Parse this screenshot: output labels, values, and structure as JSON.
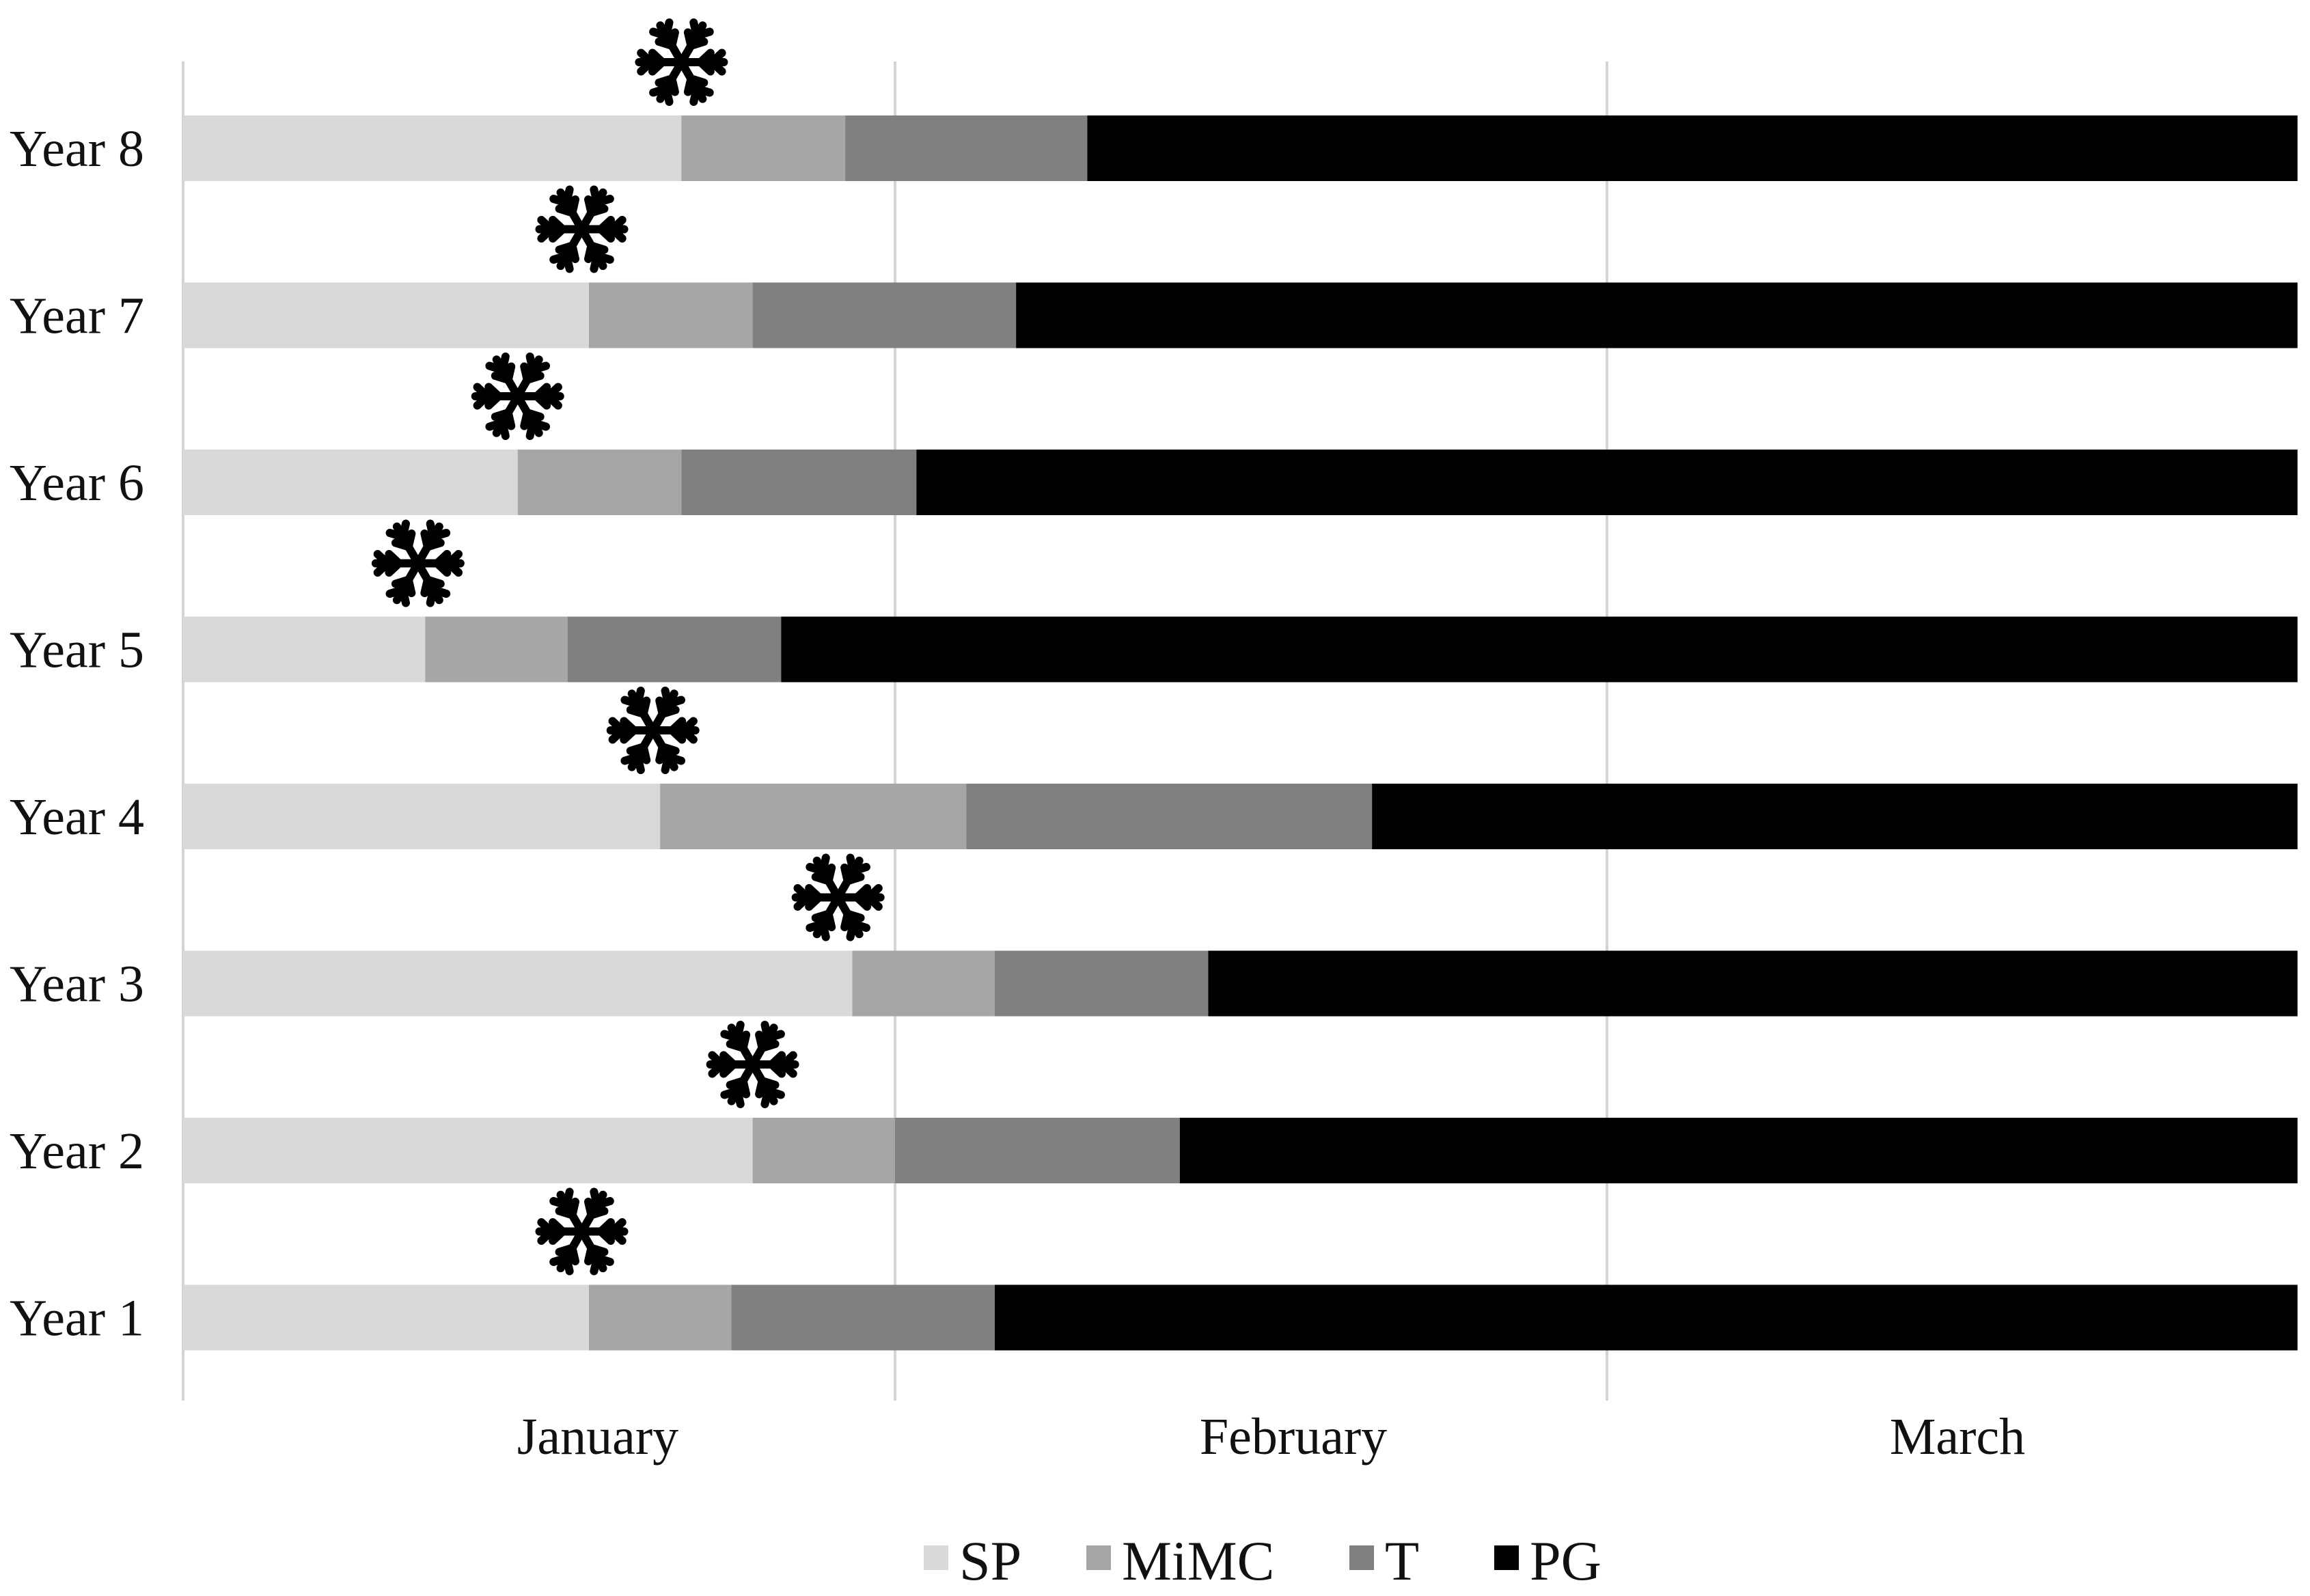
{
  "chart_data": {
    "type": "bar",
    "orientation": "horizontal",
    "stacked": true,
    "categories": [
      "Year 8",
      "Year 7",
      "Year 6",
      "Year 5",
      "Year 4",
      "Year 3",
      "Year 2",
      "Year 1"
    ],
    "x_axis": {
      "labels": [
        "January",
        "February",
        "March"
      ],
      "unit": "months",
      "range": [
        0,
        2.97
      ]
    },
    "grid": true,
    "series": [
      {
        "name": "SP",
        "color": "#d9d9d9",
        "values": [
          0.7,
          0.57,
          0.47,
          0.34,
          0.67,
          0.94,
          0.8,
          0.57
        ]
      },
      {
        "name": "MiMC",
        "color": "#a6a6a6",
        "values": [
          0.23,
          0.23,
          0.23,
          0.2,
          0.43,
          0.2,
          0.2,
          0.2
        ]
      },
      {
        "name": "T",
        "color": "#808080",
        "values": [
          0.34,
          0.37,
          0.33,
          0.3,
          0.57,
          0.3,
          0.4,
          0.37
        ]
      },
      {
        "name": "PG",
        "color": "#000000",
        "values": [
          1.7,
          1.8,
          1.94,
          2.13,
          1.3,
          1.53,
          1.57,
          1.83
        ]
      }
    ],
    "snowflake_markers": {
      "icon": "snowflake-icon",
      "x": [
        0.7,
        0.56,
        0.47,
        0.33,
        0.66,
        0.92,
        0.8,
        0.56
      ]
    },
    "legend": {
      "position": "bottom-center",
      "entries": [
        "SP",
        "MiMC",
        "T",
        "PG"
      ]
    }
  }
}
